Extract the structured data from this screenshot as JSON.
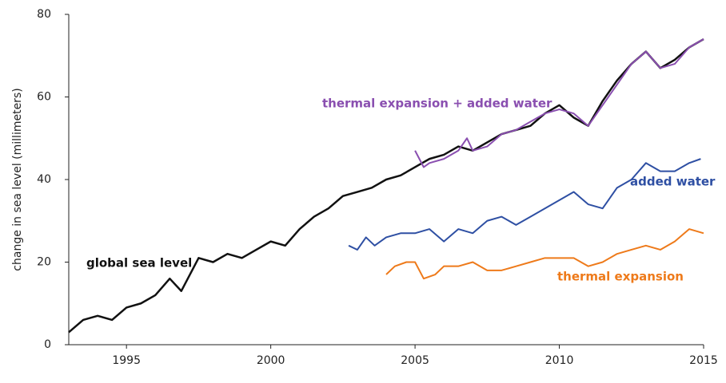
{
  "chart_data": {
    "type": "line",
    "ylabel": "change in sea level (millimeters)",
    "xlim": [
      1993,
      2015
    ],
    "xticks": [
      1995,
      2000,
      2005,
      2010,
      2015
    ],
    "ylim": [
      0,
      80
    ],
    "yticks": [
      0,
      20,
      40,
      60,
      80
    ],
    "series": [
      {
        "name": "global sea level",
        "color": "#111111",
        "x": [
          1993,
          1993.5,
          1994,
          1994.5,
          1995,
          1995.5,
          1996,
          1996.5,
          1996.9,
          1997.5,
          1998,
          1998.5,
          1999,
          1999.5,
          2000,
          2000.5,
          2001,
          2001.5,
          2002,
          2002.5,
          2003,
          2003.5,
          2004,
          2004.5,
          2005,
          2005.5,
          2006,
          2006.5,
          2007,
          2007.5,
          2008,
          2008.5,
          2009,
          2009.5,
          2010,
          2010.5,
          2011,
          2011.5,
          2012,
          2012.5,
          2013,
          2013.5,
          2014,
          2014.5,
          2015
        ],
        "values": [
          3,
          6,
          7,
          6,
          9,
          10,
          12,
          16,
          13,
          21,
          20,
          22,
          21,
          23,
          25,
          24,
          28,
          31,
          33,
          36,
          37,
          38,
          40,
          41,
          43,
          45,
          46,
          48,
          47,
          49,
          51,
          52,
          53,
          56,
          58,
          55,
          53,
          59,
          64,
          68,
          71,
          67,
          69,
          72,
          74
        ]
      },
      {
        "name": "thermal expansion + added water",
        "color": "#8a4fb0",
        "x": [
          2005,
          2005.3,
          2005.5,
          2006,
          2006.5,
          2006.8,
          2007,
          2007.5,
          2008,
          2008.5,
          2009,
          2009.5,
          2010,
          2010.5,
          2011,
          2011.5,
          2012,
          2012.5,
          2013,
          2013.5,
          2014,
          2014.5,
          2015
        ],
        "values": [
          47,
          43,
          44,
          45,
          47,
          50,
          47,
          48,
          51,
          52,
          54,
          56,
          57,
          56,
          53,
          58,
          63,
          68,
          71,
          67,
          68,
          72,
          74
        ]
      },
      {
        "name": "added water",
        "color": "#2e4fa3",
        "x": [
          2002.7,
          2003,
          2003.3,
          2003.6,
          2004,
          2004.5,
          2005,
          2005.5,
          2006,
          2006.5,
          2007,
          2007.5,
          2008,
          2008.5,
          2009,
          2009.5,
          2010,
          2010.5,
          2011,
          2011.5,
          2012,
          2012.5,
          2013,
          2013.5,
          2014,
          2014.5,
          2014.9
        ],
        "values": [
          24,
          23,
          26,
          24,
          26,
          27,
          27,
          28,
          25,
          28,
          27,
          30,
          31,
          29,
          31,
          33,
          35,
          37,
          34,
          33,
          38,
          40,
          44,
          42,
          42,
          44,
          45
        ]
      },
      {
        "name": "thermal expansion",
        "color": "#ee7a1a",
        "x": [
          2004,
          2004.3,
          2004.7,
          2005,
          2005.3,
          2005.7,
          2006,
          2006.5,
          2007,
          2007.5,
          2008,
          2008.5,
          2009,
          2009.5,
          2010,
          2010.5,
          2011,
          2011.5,
          2012,
          2012.5,
          2013,
          2013.5,
          2014,
          2014.5,
          2015
        ],
        "values": [
          17,
          19,
          20,
          20,
          16,
          17,
          19,
          19,
          20,
          18,
          18,
          19,
          20,
          21,
          21,
          21,
          19,
          20,
          22,
          23,
          24,
          23,
          25,
          28,
          27
        ]
      }
    ]
  }
}
